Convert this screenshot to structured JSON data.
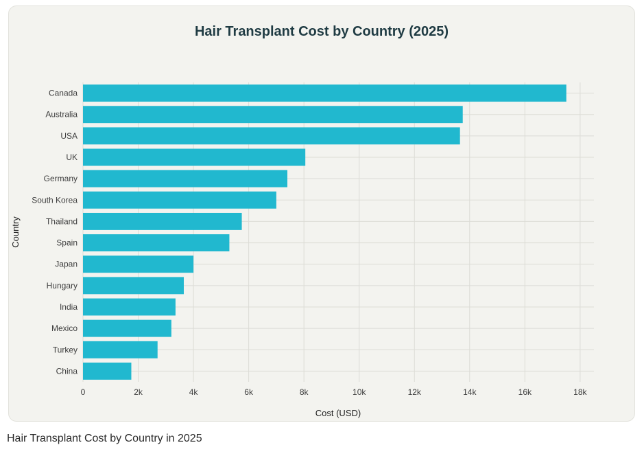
{
  "chart_data": {
    "type": "bar",
    "orientation": "horizontal",
    "title": "Hair Transplant Cost by Country (2025)",
    "xlabel": "Cost (USD)",
    "ylabel": "Country",
    "categories": [
      "Canada",
      "Australia",
      "USA",
      "UK",
      "Germany",
      "South Korea",
      "Thailand",
      "Spain",
      "Japan",
      "Hungary",
      "India",
      "Mexico",
      "Turkey",
      "China"
    ],
    "values": [
      17500,
      13750,
      13650,
      8050,
      7400,
      7000,
      5750,
      5300,
      4000,
      3650,
      3350,
      3200,
      2700,
      1750
    ],
    "xlim": [
      0,
      18500
    ],
    "xticks": [
      0,
      2000,
      4000,
      6000,
      8000,
      10000,
      12000,
      14000,
      16000,
      18000
    ],
    "xtick_labels": [
      "0",
      "2k",
      "4k",
      "6k",
      "8k",
      "10k",
      "12k",
      "14k",
      "16k",
      "18k"
    ],
    "grid": true,
    "bar_color": "#21b8cf"
  },
  "caption": "Hair Transplant Cost by Country in 2025"
}
